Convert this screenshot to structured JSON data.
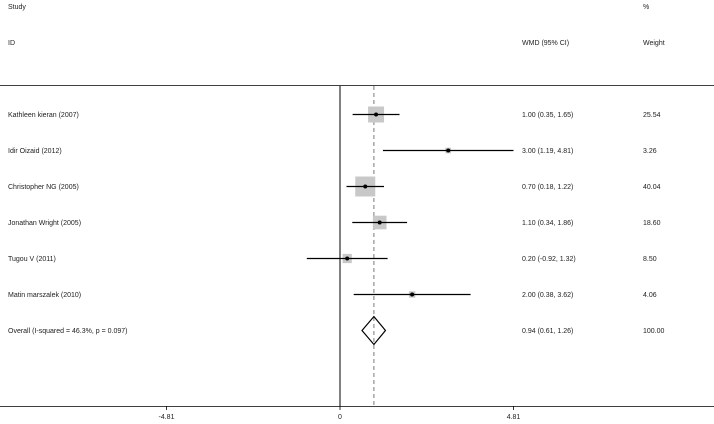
{
  "header": {
    "study": "Study",
    "id": "ID",
    "percent": "%",
    "wmd_ci": "WMD (95% CI)",
    "weight": "Weight"
  },
  "chart_data": {
    "type": "forest",
    "effect_measure": "WMD (95% CI)",
    "xlim": [
      -4.81,
      4.81
    ],
    "x_ticks": [
      -4.81,
      0,
      4.81
    ],
    "x_tick_labels": [
      "-4.81",
      "0",
      "4.81"
    ],
    "null_line": 0,
    "overall_line": 0.94,
    "studies": [
      {
        "label": "Kathleen kieran (2007)",
        "effect": 1.0,
        "lower": 0.35,
        "upper": 1.65,
        "ci_text": "1.00 (0.35, 1.65)",
        "weight": 25.54,
        "weight_text": "25.54"
      },
      {
        "label": "Idir Oizaid (2012)",
        "effect": 3.0,
        "lower": 1.19,
        "upper": 4.81,
        "ci_text": "3.00 (1.19, 4.81)",
        "weight": 3.26,
        "weight_text": "3.26"
      },
      {
        "label": "Christopher NG (2005)",
        "effect": 0.7,
        "lower": 0.18,
        "upper": 1.22,
        "ci_text": "0.70 (0.18, 1.22)",
        "weight": 40.04,
        "weight_text": "40.04"
      },
      {
        "label": "Jonathan Wright (2005)",
        "effect": 1.1,
        "lower": 0.34,
        "upper": 1.86,
        "ci_text": "1.10 (0.34, 1.86)",
        "weight": 18.6,
        "weight_text": "18.60"
      },
      {
        "label": "Tugou V (2011)",
        "effect": 0.2,
        "lower": -0.92,
        "upper": 1.32,
        "ci_text": "0.20 (-0.92, 1.32)",
        "weight": 8.5,
        "weight_text": "8.50"
      },
      {
        "label": "Matin marszalek (2010)",
        "effect": 2.0,
        "lower": 0.38,
        "upper": 3.62,
        "ci_text": "2.00 (0.38, 3.62)",
        "weight": 4.06,
        "weight_text": "4.06"
      }
    ],
    "overall": {
      "label": "Overall  (I-squared = 46.3%, p = 0.097)",
      "effect": 0.94,
      "lower": 0.61,
      "upper": 1.26,
      "ci_text": "0.94 (0.61, 1.26)",
      "weight_text": "100.00"
    }
  },
  "colors": {
    "box": "#c8c8c8",
    "line": "#000000",
    "dashed": "#7a7a7a"
  }
}
